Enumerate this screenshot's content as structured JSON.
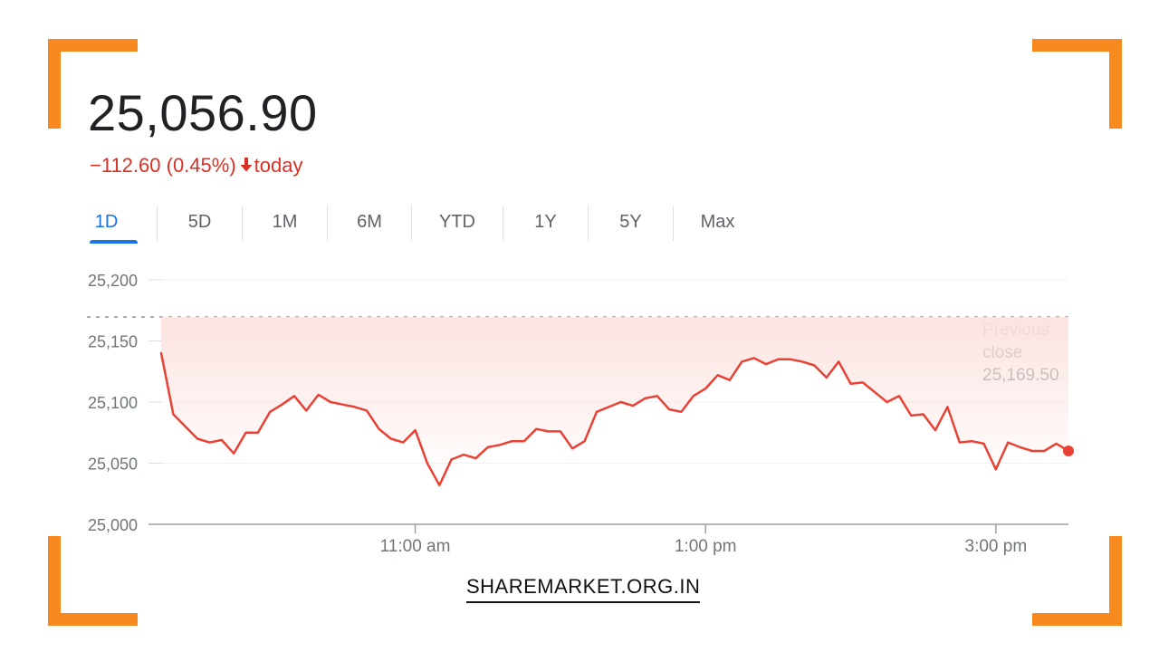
{
  "header": {
    "price": "25,056.90",
    "change": "−112.60 (0.45%)",
    "change_arrow": "down-arrow-icon",
    "period_label": "today"
  },
  "tabs": [
    {
      "label": "1D",
      "active": true
    },
    {
      "label": "5D",
      "active": false
    },
    {
      "label": "1M",
      "active": false
    },
    {
      "label": "6M",
      "active": false
    },
    {
      "label": "YTD",
      "active": false
    },
    {
      "label": "1Y",
      "active": false
    },
    {
      "label": "5Y",
      "active": false
    },
    {
      "label": "Max",
      "active": false
    }
  ],
  "watermark": "SHAREMARKET.ORG.IN",
  "colors": {
    "line": "#e94235",
    "fill": "#fbe3e0",
    "negative_text": "#d93025",
    "active_tab": "#1a73e8",
    "frame_accent": "#f7891f"
  },
  "chart_data": {
    "type": "line",
    "title": "",
    "xlabel": "",
    "ylabel": "",
    "ylim": [
      25000,
      25200
    ],
    "yticks": [
      25000,
      25050,
      25100,
      25150,
      25200
    ],
    "ytick_labels": [
      "25,000",
      "25,050",
      "25,100",
      "25,150",
      "25,200"
    ],
    "xlim": [
      "09:15",
      "15:30"
    ],
    "xticks": [
      "11:00",
      "13:00",
      "15:00"
    ],
    "xtick_labels": [
      "11:00 am",
      "1:00 pm",
      "3:00 pm"
    ],
    "grid": true,
    "reference_line": {
      "value": 25169.5,
      "label": [
        "Previous",
        "close",
        "25,169.50"
      ]
    },
    "series": [
      {
        "x": [
          "09:15",
          "09:20",
          "09:25",
          "09:30",
          "09:35",
          "09:40",
          "09:45",
          "09:50",
          "09:55",
          "10:00",
          "10:05",
          "10:10",
          "10:15",
          "10:20",
          "10:25",
          "10:30",
          "10:35",
          "10:40",
          "10:45",
          "10:50",
          "10:55",
          "11:00",
          "11:05",
          "11:10",
          "11:15",
          "11:20",
          "11:25",
          "11:30",
          "11:35",
          "11:40",
          "11:45",
          "11:50",
          "11:55",
          "12:00",
          "12:05",
          "12:10",
          "12:15",
          "12:20",
          "12:25",
          "12:30",
          "12:35",
          "12:40",
          "12:45",
          "12:50",
          "12:55",
          "13:00",
          "13:05",
          "13:10",
          "13:15",
          "13:20",
          "13:25",
          "13:30",
          "13:35",
          "13:40",
          "13:45",
          "13:50",
          "13:55",
          "14:00",
          "14:05",
          "14:10",
          "14:15",
          "14:20",
          "14:25",
          "14:30",
          "14:35",
          "14:40",
          "14:45",
          "14:50",
          "14:55",
          "15:00",
          "15:05",
          "15:10",
          "15:15",
          "15:20",
          "15:25"
        ],
        "values": [
          25140,
          25090,
          25080,
          25070,
          25067,
          25069,
          25058,
          25075,
          25075,
          25092,
          25098,
          25105,
          25093,
          25106,
          25100,
          25098,
          25096,
          25093,
          25078,
          25070,
          25067,
          25077,
          25050,
          25032,
          25053,
          25057,
          25054,
          25063,
          25065,
          25068,
          25068,
          25078,
          25076,
          25076,
          25062,
          25068,
          25092,
          25096,
          25100,
          25097,
          25103,
          25105,
          25094,
          25092,
          25105,
          25111,
          25122,
          25118,
          25133,
          25136,
          25131,
          25135,
          25135,
          25133,
          25130,
          25120,
          25133,
          25115,
          25116,
          25108,
          25100,
          25105,
          25089,
          25090,
          25077,
          25096,
          25067,
          25068,
          25066,
          25045,
          25067,
          25063,
          25060,
          25060,
          25066
        ]
      }
    ],
    "last_point": {
      "x": "15:30",
      "value": 25060
    }
  }
}
